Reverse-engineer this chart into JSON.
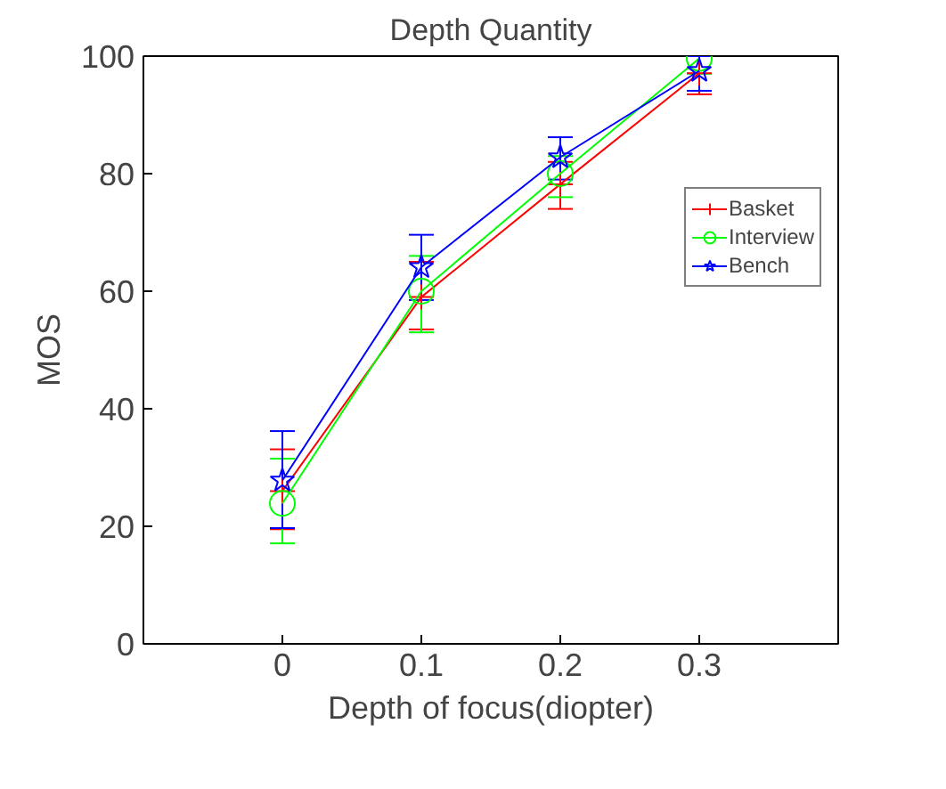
{
  "chart_data": {
    "type": "line",
    "title": "Depth Quantity",
    "xlabel": "Depth of focus(diopter)",
    "ylabel": "MOS",
    "x": [
      0,
      0.1,
      0.2,
      0.3
    ],
    "xlim": [
      -0.1,
      0.4
    ],
    "xticks": [
      0,
      0.1,
      0.2,
      0.3
    ],
    "ylim": [
      0,
      100
    ],
    "yticks": [
      0,
      20,
      40,
      60,
      80,
      100
    ],
    "grid": false,
    "legend": "top right",
    "line_style": "solid",
    "series": [
      {
        "name": "Basket",
        "color": "#ff0000",
        "marker": "cross",
        "values": [
          26,
          59,
          78.2,
          97.1
        ],
        "errors": [
          [
            19.5,
            33.1
          ],
          [
            53.5,
            65
          ],
          [
            74,
            82
          ],
          [
            93.5,
            100
          ]
        ]
      },
      {
        "name": "Interview",
        "color": "#00ff00",
        "marker": "circle",
        "values": [
          23.9,
          60,
          80,
          99.6
        ],
        "errors": [
          [
            17.1,
            31.5
          ],
          [
            53,
            66
          ],
          [
            76,
            83
          ],
          [
            97,
            100
          ]
        ]
      },
      {
        "name": "Bench",
        "color": "#0000ff",
        "marker": "star",
        "values": [
          27.8,
          64.1,
          82.8,
          97.5
        ],
        "errors": [
          [
            19.7,
            36.2
          ],
          [
            58.5,
            69.6
          ],
          [
            79,
            86.2
          ],
          [
            94.1,
            100
          ]
        ]
      }
    ]
  }
}
